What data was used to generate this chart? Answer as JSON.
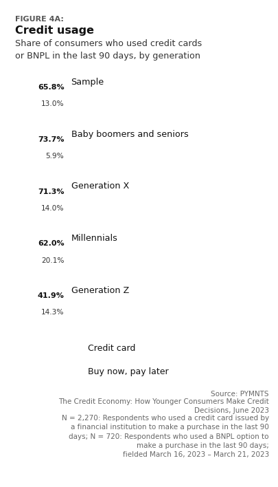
{
  "figure_label": "FIGURE 4A:",
  "title": "Credit usage",
  "subtitle": "Share of consumers who used credit cards\nor BNPL in the last 90 days, by generation",
  "categories": [
    "Sample",
    "Baby boomers and seniors",
    "Generation X",
    "Millennials",
    "Generation Z"
  ],
  "credit_card_values": [
    65.8,
    73.7,
    71.3,
    62.0,
    41.9
  ],
  "bnpl_values": [
    13.0,
    5.9,
    14.0,
    20.1,
    14.3
  ],
  "max_value": 100,
  "credit_card_color": "#5bc8f5",
  "bnpl_color": "#111111",
  "bar_bg_color": "#d9d9d9",
  "legend_credit": "Credit card",
  "legend_bnpl": "Buy now, pay later",
  "source_line1": "Source: PYMNTS",
  "source_line2": "The Credit Economy: How Younger Consumers Make Credit\nDecisions, June 2023",
  "source_line3": "N = 2,270: Respondents who used a credit card issued by\na financial institution to make a purchase in the last 90\ndays; N = 720: Respondents who used a BNPL option to\nmake a purchase in the last 90 days;\nfielded March 16, 2023 – March 21, 2023",
  "bg_color": "#ffffff",
  "pct_fontsize": 8.0,
  "category_fontsize": 9.2,
  "title_fontsize": 11.5,
  "subtitle_fontsize": 9.2,
  "figure_label_fontsize": 8.0,
  "legend_fontsize": 9.0,
  "source_fontsize": 7.5
}
